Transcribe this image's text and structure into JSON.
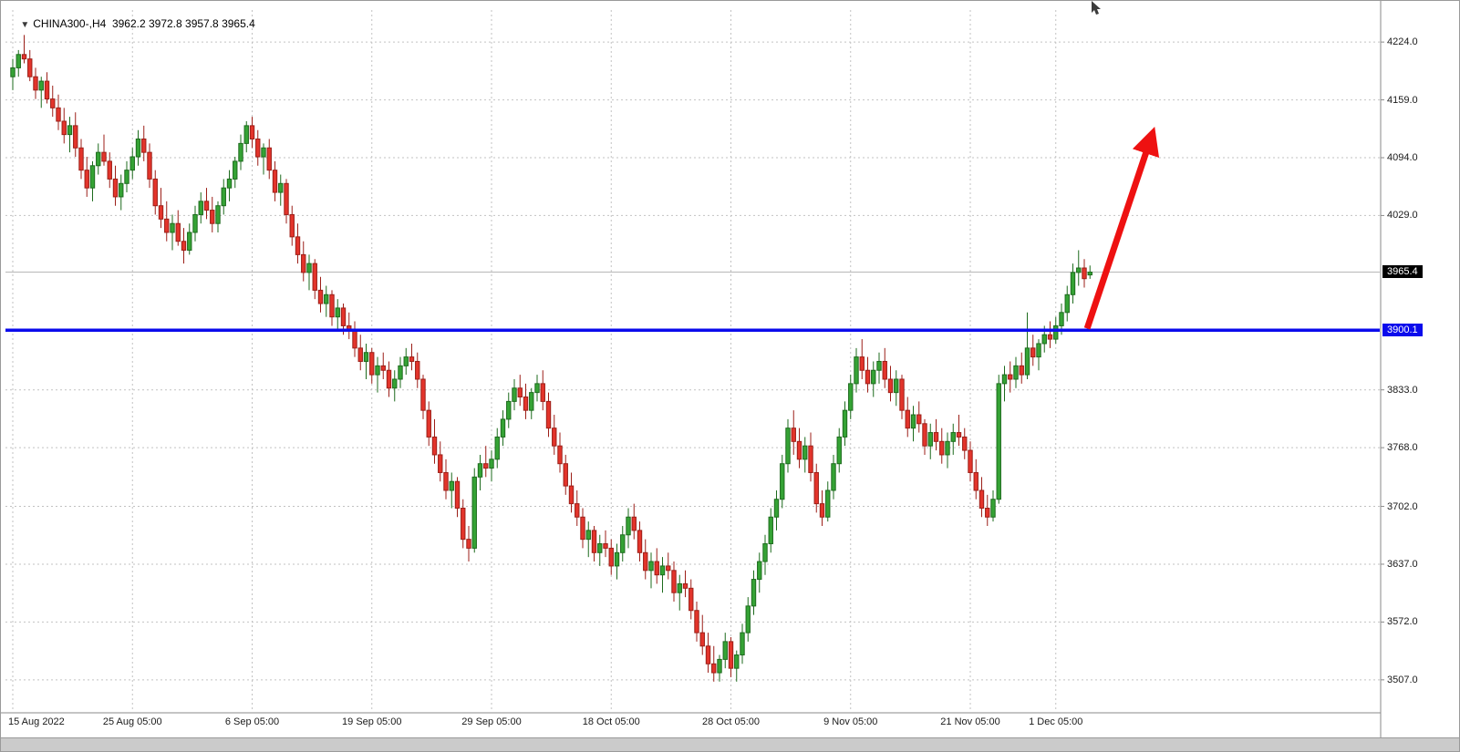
{
  "header": {
    "symbol_period": "CHINA300-,H4",
    "ohlc_text": "3962.2 3972.8 3957.8 3965.4"
  },
  "colors": {
    "up_fill": "#35a335",
    "up_stroke": "#1d6b1d",
    "down_fill": "#e3342b",
    "down_stroke": "#9c1f18",
    "hline_blue": "#0b0bec",
    "arrow_red": "#ee1111",
    "grid": "#c2c2c2",
    "current_price_line": "#b8b8b8",
    "axis_line": "#8a8a8a",
    "current_badge_bg": "#000000",
    "hline_badge_bg": "#0b0bec"
  },
  "chart_data": {
    "type": "candlestick",
    "symbol": "CHINA300-",
    "timeframe": "H4",
    "last_ohlc": {
      "open": 3962.2,
      "high": 3972.8,
      "low": 3957.8,
      "close": 3965.4
    },
    "current_price": 3965.4,
    "horizontal_line_price": 3900.1,
    "ylim": [
      3472,
      4260
    ],
    "y_ticks": [
      4224.0,
      4159.0,
      4094.0,
      4029.0,
      3833.0,
      3768.0,
      3702.0,
      3637.0,
      3572.0,
      3507.0
    ],
    "x_tick_labels": [
      "15 Aug 2022",
      "25 Aug 05:00",
      "6 Sep 05:00",
      "19 Sep 05:00",
      "29 Sep 05:00",
      "18 Oct 05:00",
      "28 Oct 05:00",
      "9 Nov 05:00",
      "21 Nov 05:00",
      "1 Dec 05:00"
    ],
    "x_tick_indices": [
      0,
      21,
      42,
      63,
      84,
      105,
      126,
      147,
      168,
      183
    ],
    "annotation_arrow": {
      "from_index": 188.5,
      "from_price": 3902,
      "to_index": 200,
      "to_price": 4122
    },
    "candles": [
      [
        4185,
        4205,
        4170,
        4195
      ],
      [
        4195,
        4215,
        4185,
        4210
      ],
      [
        4210,
        4232,
        4200,
        4205
      ],
      [
        4205,
        4215,
        4180,
        4185
      ],
      [
        4185,
        4195,
        4160,
        4170
      ],
      [
        4170,
        4185,
        4150,
        4180
      ],
      [
        4180,
        4190,
        4155,
        4160
      ],
      [
        4160,
        4175,
        4140,
        4150
      ],
      [
        4150,
        4165,
        4125,
        4135
      ],
      [
        4135,
        4150,
        4110,
        4120
      ],
      [
        4120,
        4140,
        4100,
        4130
      ],
      [
        4130,
        4145,
        4095,
        4105
      ],
      [
        4105,
        4115,
        4070,
        4080
      ],
      [
        4080,
        4095,
        4050,
        4060
      ],
      [
        4060,
        4090,
        4045,
        4085
      ],
      [
        4085,
        4110,
        4075,
        4100
      ],
      [
        4100,
        4120,
        4085,
        4090
      ],
      [
        4090,
        4100,
        4060,
        4070
      ],
      [
        4070,
        4085,
        4040,
        4050
      ],
      [
        4050,
        4075,
        4035,
        4065
      ],
      [
        4065,
        4090,
        4055,
        4080
      ],
      [
        4080,
        4105,
        4070,
        4095
      ],
      [
        4095,
        4125,
        4085,
        4115
      ],
      [
        4115,
        4130,
        4090,
        4100
      ],
      [
        4100,
        4110,
        4060,
        4070
      ],
      [
        4070,
        4080,
        4030,
        4040
      ],
      [
        4040,
        4060,
        4015,
        4025
      ],
      [
        4025,
        4045,
        4000,
        4010
      ],
      [
        4010,
        4030,
        3990,
        4020
      ],
      [
        4020,
        4035,
        3995,
        4000
      ],
      [
        4000,
        4015,
        3975,
        3990
      ],
      [
        3990,
        4020,
        3985,
        4010
      ],
      [
        4010,
        4040,
        4000,
        4030
      ],
      [
        4030,
        4055,
        4020,
        4045
      ],
      [
        4045,
        4060,
        4025,
        4035
      ],
      [
        4035,
        4050,
        4010,
        4020
      ],
      [
        4020,
        4045,
        4010,
        4040
      ],
      [
        4040,
        4070,
        4030,
        4060
      ],
      [
        4060,
        4080,
        4045,
        4070
      ],
      [
        4070,
        4095,
        4060,
        4090
      ],
      [
        4090,
        4120,
        4080,
        4110
      ],
      [
        4110,
        4135,
        4100,
        4130
      ],
      [
        4130,
        4140,
        4105,
        4115
      ],
      [
        4115,
        4125,
        4085,
        4095
      ],
      [
        4095,
        4110,
        4075,
        4105
      ],
      [
        4105,
        4115,
        4070,
        4080
      ],
      [
        4080,
        4090,
        4045,
        4055
      ],
      [
        4055,
        4075,
        4040,
        4065
      ],
      [
        4065,
        4070,
        4020,
        4030
      ],
      [
        4030,
        4040,
        3995,
        4005
      ],
      [
        4005,
        4020,
        3975,
        3985
      ],
      [
        3985,
        4000,
        3955,
        3965
      ],
      [
        3965,
        3985,
        3945,
        3975
      ],
      [
        3975,
        3980,
        3935,
        3945
      ],
      [
        3945,
        3960,
        3920,
        3930
      ],
      [
        3930,
        3950,
        3915,
        3940
      ],
      [
        3940,
        3945,
        3905,
        3915
      ],
      [
        3915,
        3935,
        3900,
        3925
      ],
      [
        3925,
        3930,
        3895,
        3905
      ],
      [
        3905,
        3920,
        3890,
        3900
      ],
      [
        3900,
        3910,
        3870,
        3880
      ],
      [
        3880,
        3895,
        3855,
        3865
      ],
      [
        3865,
        3885,
        3845,
        3875
      ],
      [
        3875,
        3880,
        3840,
        3850
      ],
      [
        3850,
        3870,
        3830,
        3860
      ],
      [
        3860,
        3875,
        3845,
        3855
      ],
      [
        3855,
        3865,
        3825,
        3835
      ],
      [
        3835,
        3855,
        3820,
        3845
      ],
      [
        3845,
        3870,
        3835,
        3860
      ],
      [
        3860,
        3880,
        3850,
        3870
      ],
      [
        3870,
        3885,
        3855,
        3865
      ],
      [
        3865,
        3875,
        3835,
        3845
      ],
      [
        3845,
        3850,
        3800,
        3810
      ],
      [
        3810,
        3820,
        3770,
        3780
      ],
      [
        3780,
        3800,
        3750,
        3760
      ],
      [
        3760,
        3775,
        3730,
        3740
      ],
      [
        3740,
        3755,
        3710,
        3720
      ],
      [
        3720,
        3740,
        3700,
        3730
      ],
      [
        3730,
        3735,
        3690,
        3700
      ],
      [
        3700,
        3710,
        3655,
        3665
      ],
      [
        3665,
        3680,
        3640,
        3655
      ],
      [
        3655,
        3745,
        3650,
        3735
      ],
      [
        3735,
        3760,
        3720,
        3750
      ],
      [
        3750,
        3770,
        3735,
        3745
      ],
      [
        3745,
        3765,
        3730,
        3755
      ],
      [
        3755,
        3790,
        3745,
        3780
      ],
      [
        3780,
        3810,
        3770,
        3800
      ],
      [
        3800,
        3830,
        3790,
        3820
      ],
      [
        3820,
        3845,
        3810,
        3835
      ],
      [
        3835,
        3850,
        3815,
        3825
      ],
      [
        3825,
        3840,
        3800,
        3810
      ],
      [
        3810,
        3835,
        3800,
        3830
      ],
      [
        3830,
        3850,
        3820,
        3840
      ],
      [
        3840,
        3855,
        3810,
        3820
      ],
      [
        3820,
        3830,
        3780,
        3790
      ],
      [
        3790,
        3805,
        3760,
        3770
      ],
      [
        3770,
        3785,
        3740,
        3750
      ],
      [
        3750,
        3760,
        3715,
        3725
      ],
      [
        3725,
        3740,
        3695,
        3705
      ],
      [
        3705,
        3720,
        3680,
        3690
      ],
      [
        3690,
        3700,
        3655,
        3665
      ],
      [
        3665,
        3685,
        3645,
        3675
      ],
      [
        3675,
        3680,
        3640,
        3650
      ],
      [
        3650,
        3670,
        3635,
        3660
      ],
      [
        3660,
        3675,
        3645,
        3655
      ],
      [
        3655,
        3665,
        3625,
        3635
      ],
      [
        3635,
        3660,
        3620,
        3650
      ],
      [
        3650,
        3680,
        3640,
        3670
      ],
      [
        3670,
        3700,
        3655,
        3690
      ],
      [
        3690,
        3705,
        3665,
        3675
      ],
      [
        3675,
        3685,
        3640,
        3650
      ],
      [
        3650,
        3665,
        3620,
        3630
      ],
      [
        3630,
        3650,
        3610,
        3640
      ],
      [
        3640,
        3655,
        3615,
        3625
      ],
      [
        3625,
        3645,
        3605,
        3635
      ],
      [
        3635,
        3650,
        3620,
        3630
      ],
      [
        3630,
        3640,
        3595,
        3605
      ],
      [
        3605,
        3625,
        3585,
        3615
      ],
      [
        3615,
        3630,
        3600,
        3610
      ],
      [
        3610,
        3620,
        3575,
        3585
      ],
      [
        3585,
        3595,
        3550,
        3560
      ],
      [
        3560,
        3580,
        3535,
        3545
      ],
      [
        3545,
        3560,
        3515,
        3525
      ],
      [
        3525,
        3545,
        3505,
        3515
      ],
      [
        3515,
        3535,
        3505,
        3530
      ],
      [
        3530,
        3560,
        3520,
        3550
      ],
      [
        3550,
        3555,
        3510,
        3520
      ],
      [
        3520,
        3540,
        3505,
        3535
      ],
      [
        3535,
        3570,
        3525,
        3560
      ],
      [
        3560,
        3600,
        3550,
        3590
      ],
      [
        3590,
        3630,
        3580,
        3620
      ],
      [
        3620,
        3650,
        3605,
        3640
      ],
      [
        3640,
        3670,
        3625,
        3660
      ],
      [
        3660,
        3700,
        3650,
        3690
      ],
      [
        3690,
        3720,
        3675,
        3710
      ],
      [
        3710,
        3760,
        3700,
        3750
      ],
      [
        3750,
        3800,
        3740,
        3790
      ],
      [
        3790,
        3810,
        3760,
        3775
      ],
      [
        3775,
        3790,
        3745,
        3755
      ],
      [
        3755,
        3780,
        3740,
        3770
      ],
      [
        3770,
        3785,
        3730,
        3740
      ],
      [
        3740,
        3750,
        3695,
        3705
      ],
      [
        3705,
        3720,
        3680,
        3690
      ],
      [
        3690,
        3730,
        3685,
        3720
      ],
      [
        3720,
        3760,
        3710,
        3750
      ],
      [
        3750,
        3790,
        3740,
        3780
      ],
      [
        3780,
        3820,
        3770,
        3810
      ],
      [
        3810,
        3850,
        3800,
        3840
      ],
      [
        3840,
        3880,
        3830,
        3870
      ],
      [
        3870,
        3890,
        3845,
        3855
      ],
      [
        3855,
        3870,
        3830,
        3840
      ],
      [
        3840,
        3865,
        3825,
        3855
      ],
      [
        3855,
        3875,
        3840,
        3865
      ],
      [
        3865,
        3880,
        3835,
        3845
      ],
      [
        3845,
        3860,
        3820,
        3830
      ],
      [
        3830,
        3855,
        3815,
        3845
      ],
      [
        3845,
        3850,
        3800,
        3810
      ],
      [
        3810,
        3825,
        3780,
        3790
      ],
      [
        3790,
        3815,
        3775,
        3805
      ],
      [
        3805,
        3820,
        3785,
        3795
      ],
      [
        3795,
        3800,
        3760,
        3770
      ],
      [
        3770,
        3795,
        3755,
        3785
      ],
      [
        3785,
        3800,
        3765,
        3775
      ],
      [
        3775,
        3790,
        3750,
        3760
      ],
      [
        3760,
        3785,
        3745,
        3775
      ],
      [
        3775,
        3795,
        3760,
        3785
      ],
      [
        3785,
        3805,
        3770,
        3780
      ],
      [
        3780,
        3790,
        3755,
        3765
      ],
      [
        3765,
        3775,
        3730,
        3740
      ],
      [
        3740,
        3755,
        3710,
        3720
      ],
      [
        3720,
        3735,
        3690,
        3700
      ],
      [
        3700,
        3715,
        3680,
        3690
      ],
      [
        3690,
        3720,
        3685,
        3710
      ],
      [
        3710,
        3850,
        3705,
        3840
      ],
      [
        3840,
        3860,
        3820,
        3850
      ],
      [
        3850,
        3865,
        3830,
        3845
      ],
      [
        3845,
        3870,
        3835,
        3860
      ],
      [
        3860,
        3875,
        3840,
        3850
      ],
      [
        3850,
        3920,
        3845,
        3880
      ],
      [
        3880,
        3895,
        3860,
        3870
      ],
      [
        3870,
        3890,
        3855,
        3885
      ],
      [
        3885,
        3905,
        3875,
        3895
      ],
      [
        3895,
        3910,
        3880,
        3890
      ],
      [
        3890,
        3915,
        3885,
        3905
      ],
      [
        3905,
        3930,
        3895,
        3920
      ],
      [
        3920,
        3950,
        3910,
        3940
      ],
      [
        3940,
        3975,
        3930,
        3965
      ],
      [
        3965,
        3990,
        3950,
        3970
      ],
      [
        3970,
        3980,
        3948,
        3958
      ],
      [
        3962.2,
        3972.8,
        3957.8,
        3965.4
      ]
    ]
  },
  "price_axis": {
    "current_badge": "3965.4",
    "hline_badge": "3900.1"
  }
}
